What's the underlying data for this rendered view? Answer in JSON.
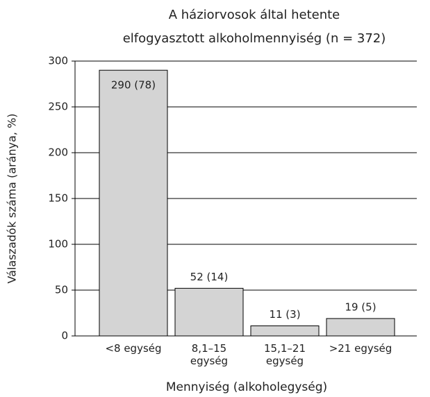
{
  "chart_data": {
    "type": "bar",
    "title": [
      "A háziorvosok által hetente",
      "elfogyasztott alkoholmennyiség (n = 372)"
    ],
    "xlabel": "Mennyiség (alkoholegység)",
    "ylabel": "Válaszadók száma (aránya, %)",
    "categories": [
      [
        "<8 egység"
      ],
      [
        "8,1–15",
        "egység"
      ],
      [
        "15,1–21",
        "egység"
      ],
      [
        ">21 egység"
      ]
    ],
    "values": [
      290,
      52,
      11,
      19
    ],
    "value_labels": [
      "290 (78)",
      "52 (14)",
      "11 (3)",
      "19 (5)"
    ],
    "color": "#d4d4d4",
    "ylim": [
      0,
      300
    ],
    "yticks": [
      0,
      50,
      100,
      150,
      200,
      250,
      300
    ],
    "grid": true
  }
}
